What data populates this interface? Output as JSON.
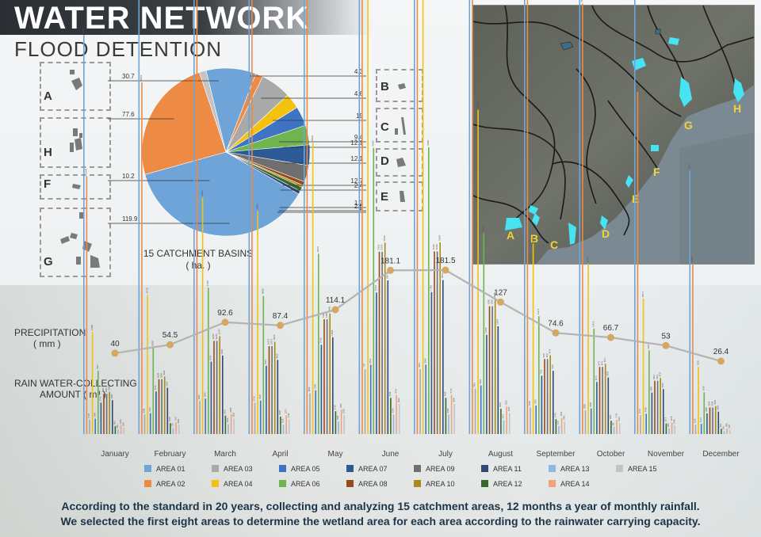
{
  "header": {
    "title": "WATER NETWORK",
    "subtitle": "FLOOD DETENTION"
  },
  "map": {
    "labels": [
      "A",
      "B",
      "C",
      "D",
      "E",
      "F",
      "G",
      "H"
    ]
  },
  "basins": {
    "left": [
      "A",
      "H",
      "F",
      "G"
    ],
    "right": [
      "B",
      "C",
      "D",
      "E"
    ]
  },
  "pie": {
    "caption_line1": "15 CATCHMENT BASINS",
    "caption_line2": "( ha. )"
  },
  "labels": {
    "precip_line1": "PRECIPITATION",
    "precip_line2": "( mm )",
    "rain_line1": "RAIN WATER-COLLECTING",
    "rain_line2": "AMOUNT ( m³ )"
  },
  "footer": {
    "line1": "According to the standard in 20 years, collecting and analyzing 15 catchment areas, 12 months a year of monthly rainfall.",
    "line2": "We selected the first eight areas to determine the wetland area for each area according to the rainwater carrying capacity."
  },
  "colors": {
    "area01": "#6fa4d8",
    "area02": "#ed8a44",
    "area03": "#a9a9a9",
    "area04": "#f3c20f",
    "area05": "#3f74c4",
    "area06": "#6fb44f",
    "area07": "#2c5a94",
    "area08": "#9a4a1a",
    "area09": "#6f6f6f",
    "area10": "#a88a1a",
    "area11": "#2f4a7a",
    "area12": "#3a6a2a",
    "area13": "#8fb7e2",
    "area14": "#f1a27a",
    "area15": "#c4c4c4",
    "line": "#b3b3b3",
    "marker": "#d4a862"
  },
  "chart_data": [
    {
      "type": "pie",
      "title": "15 CATCHMENT BASINS",
      "unit": "ha.",
      "slices": [
        {
          "value": 119.9,
          "color": "#6fa4d8"
        },
        {
          "value": 77.6,
          "color": "#ed8a44"
        },
        {
          "value": 4.3,
          "color": "#c4c4c4"
        },
        {
          "value": 30.7,
          "color": "#6fa4d8"
        },
        {
          "value": 4.6,
          "color": "#ed8a44"
        },
        {
          "value": 19,
          "color": "#a9a9a9"
        },
        {
          "value": 9.4,
          "color": "#f3c20f"
        },
        {
          "value": 12.1,
          "color": "#3f74c4"
        },
        {
          "value": 12.1,
          "color": "#6fb44f"
        },
        {
          "value": 12.7,
          "color": "#2c5a94"
        },
        {
          "value": 10.2,
          "color": "#6f6f6f"
        },
        {
          "value": 2.4,
          "color": "#9a4a1a"
        },
        {
          "value": 1.3,
          "color": "#a88a1a"
        },
        {
          "value": 2.6,
          "color": "#3a6a2a"
        },
        {
          "value": 2,
          "color": "#2f4a7a"
        }
      ],
      "labels": [
        {
          "text": "30.7",
          "side": "left"
        },
        {
          "text": "77.6",
          "side": "left"
        },
        {
          "text": "10.2",
          "side": "left"
        },
        {
          "text": "119.9",
          "side": "left"
        },
        {
          "text": "4.3",
          "side": "right"
        },
        {
          "text": "4.6",
          "side": "right"
        },
        {
          "text": "19",
          "side": "right"
        },
        {
          "text": "9.4",
          "side": "right"
        },
        {
          "text": "12.1",
          "side": "right"
        },
        {
          "text": "12.1",
          "side": "right"
        },
        {
          "text": "12.7",
          "side": "right"
        },
        {
          "text": "2.4",
          "side": "right"
        },
        {
          "text": "1.3",
          "side": "right"
        },
        {
          "text": "2.6",
          "side": "right"
        },
        {
          "text": "2",
          "side": "right"
        }
      ]
    },
    {
      "type": "line",
      "title": "PRECIPITATION",
      "unit": "mm",
      "categories": [
        "January",
        "February",
        "March",
        "April",
        "May",
        "June",
        "July",
        "August",
        "September",
        "October",
        "November",
        "December"
      ],
      "values": [
        40,
        54.5,
        92.6,
        87.4,
        114.1,
        181.1,
        181.5,
        127,
        74.6,
        66.7,
        53,
        26.4
      ],
      "ylim": [
        0,
        200
      ]
    },
    {
      "type": "bar",
      "title": "RAIN WATER-COLLECTING AMOUNT",
      "unit": "m³",
      "categories": [
        "January",
        "February",
        "March",
        "April",
        "May",
        "June",
        "July",
        "August",
        "September",
        "October",
        "November",
        "December"
      ],
      "series_names": [
        "AREA 01",
        "AREA 02",
        "AREA 03",
        "AREA 04",
        "AREA 05",
        "AREA 06",
        "AREA 07",
        "AREA 08",
        "AREA 09",
        "AREA 10",
        "AREA 11",
        "AREA 12",
        "AREA 13",
        "AREA 14",
        "AREA 15"
      ],
      "series_colors": [
        "#6fa4d8",
        "#ed8a44",
        "#a9a9a9",
        "#f3c20f",
        "#3f74c4",
        "#6fb44f",
        "#2c5a94",
        "#9a4a1a",
        "#6f6f6f",
        "#a88a1a",
        "#2f4a7a",
        "#3a6a2a",
        "#8fb7e2",
        "#f1a27a",
        "#c4c4c4"
      ],
      "basin_area_ha": [
        119.9,
        77.6,
        4.3,
        30.7,
        4.6,
        19,
        9.4,
        12.1,
        12.1,
        12.7,
        10.2,
        2.4,
        1.3,
        2.6,
        2
      ],
      "legend_position": "bottom"
    }
  ]
}
